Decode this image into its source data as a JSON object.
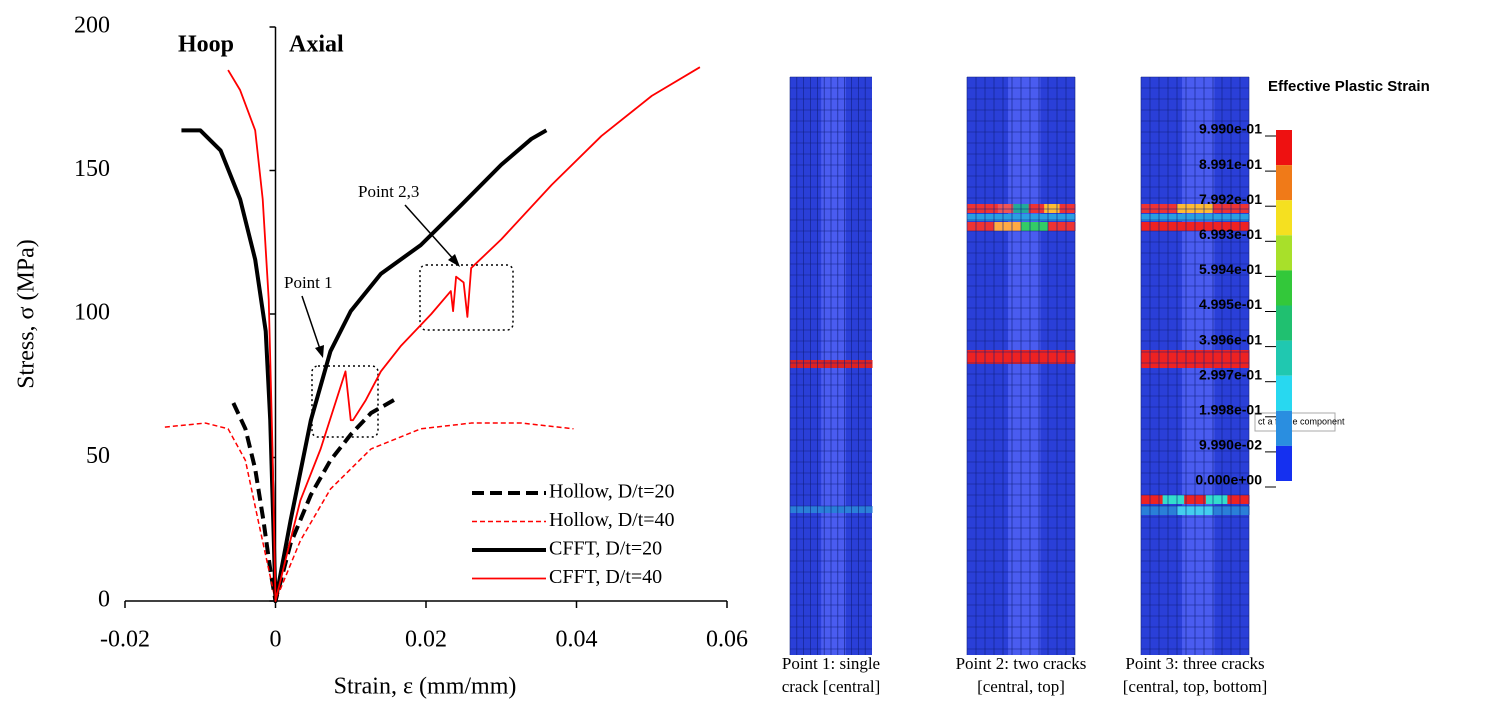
{
  "chart_data": {
    "type": "line",
    "x_label": "Strain, ε (mm/mm)",
    "y_label": "Stress, σ (MPa)",
    "xlim": [
      -0.02,
      0.06
    ],
    "xticks": [
      -0.02,
      0,
      0.02,
      0.04,
      0.06
    ],
    "ylim": [
      0,
      200
    ],
    "yticks": [
      0,
      50,
      100,
      150,
      200
    ],
    "legend": "lower right",
    "annotations": [
      "Hoop",
      "Axial",
      "Point 2,3",
      "Point 1"
    ],
    "series": [
      {
        "name": "Hollow, D/t=20",
        "color": "#000000",
        "line_style": "dashed",
        "x": [
          -0.0056,
          -0.004,
          -0.0027,
          -0.0016,
          -0.0007,
          0,
          0.002,
          0.0047,
          0.0073,
          0.01,
          0.0127,
          0.0164
        ],
        "values": [
          69,
          60,
          46,
          28,
          11,
          0,
          20,
          37,
          49,
          58,
          65.5,
          71
        ]
      },
      {
        "name": "Hollow, D/t=40",
        "color": "#ff0000",
        "line_style": "dashed",
        "x": [
          -0.0147,
          -0.0093,
          -0.0063,
          -0.004,
          -0.0023,
          -0.0009,
          0,
          0.0033,
          0.0073,
          0.0127,
          0.0193,
          0.026,
          0.0327,
          0.0396
        ],
        "values": [
          60.6,
          62,
          60,
          49,
          28,
          11,
          0,
          21,
          39,
          53,
          60,
          62,
          62,
          60
        ]
      },
      {
        "name": "CFFT, D/t=20",
        "color": "#000000",
        "line_style": "solid",
        "x": [
          -0.0125,
          -0.01,
          -0.0073,
          -0.0047,
          -0.0027,
          -0.0013,
          -0.0007,
          -0.0003,
          0,
          0.002,
          0.0047,
          0.0073,
          0.01,
          0.014,
          0.0193,
          0.0247,
          0.03,
          0.034,
          0.036
        ],
        "values": [
          164,
          164,
          157,
          140,
          119,
          94,
          63,
          28,
          0,
          28,
          63,
          87,
          101,
          114,
          124,
          138,
          152,
          161,
          164
        ]
      },
      {
        "name": "CFFT, D/t=40",
        "color": "#ff0000",
        "line_style": "solid",
        "x": [
          -0.0063,
          -0.0047,
          -0.0027,
          -0.0017,
          -0.0009,
          -0.0004,
          0,
          0.0013,
          0.0033,
          0.006,
          0.0093,
          0.01,
          0.0103,
          0.012,
          0.014,
          0.0167,
          0.0207,
          0.0233,
          0.0236,
          0.024,
          0.025,
          0.0255,
          0.026,
          0.03,
          0.0367,
          0.0433,
          0.05,
          0.0564
        ],
        "values": [
          185,
          178,
          164,
          140,
          105,
          53,
          0,
          14,
          35,
          53,
          80,
          63,
          63,
          70,
          80,
          89,
          100,
          108,
          101,
          113,
          111,
          99,
          116,
          126,
          145,
          162,
          176,
          186
        ]
      }
    ]
  },
  "contours": {
    "captions": [
      [
        "Point 1: single",
        "crack [central]"
      ],
      [
        "Point 2: two cracks",
        "[central, top]"
      ],
      [
        "Point 3: three cracks",
        "[central, top, bottom]"
      ]
    ]
  },
  "fringe": {
    "title": "Effective Plastic Strain",
    "labels": [
      "9.990e-01",
      "8.991e-01",
      "7.992e-01",
      "6.993e-01",
      "5.994e-01",
      "4.995e-01",
      "3.996e-01",
      "2.997e-01",
      "1.998e-01",
      "9.990e-02",
      "0.000e+00"
    ],
    "tooltip": "ct a fringe component"
  }
}
